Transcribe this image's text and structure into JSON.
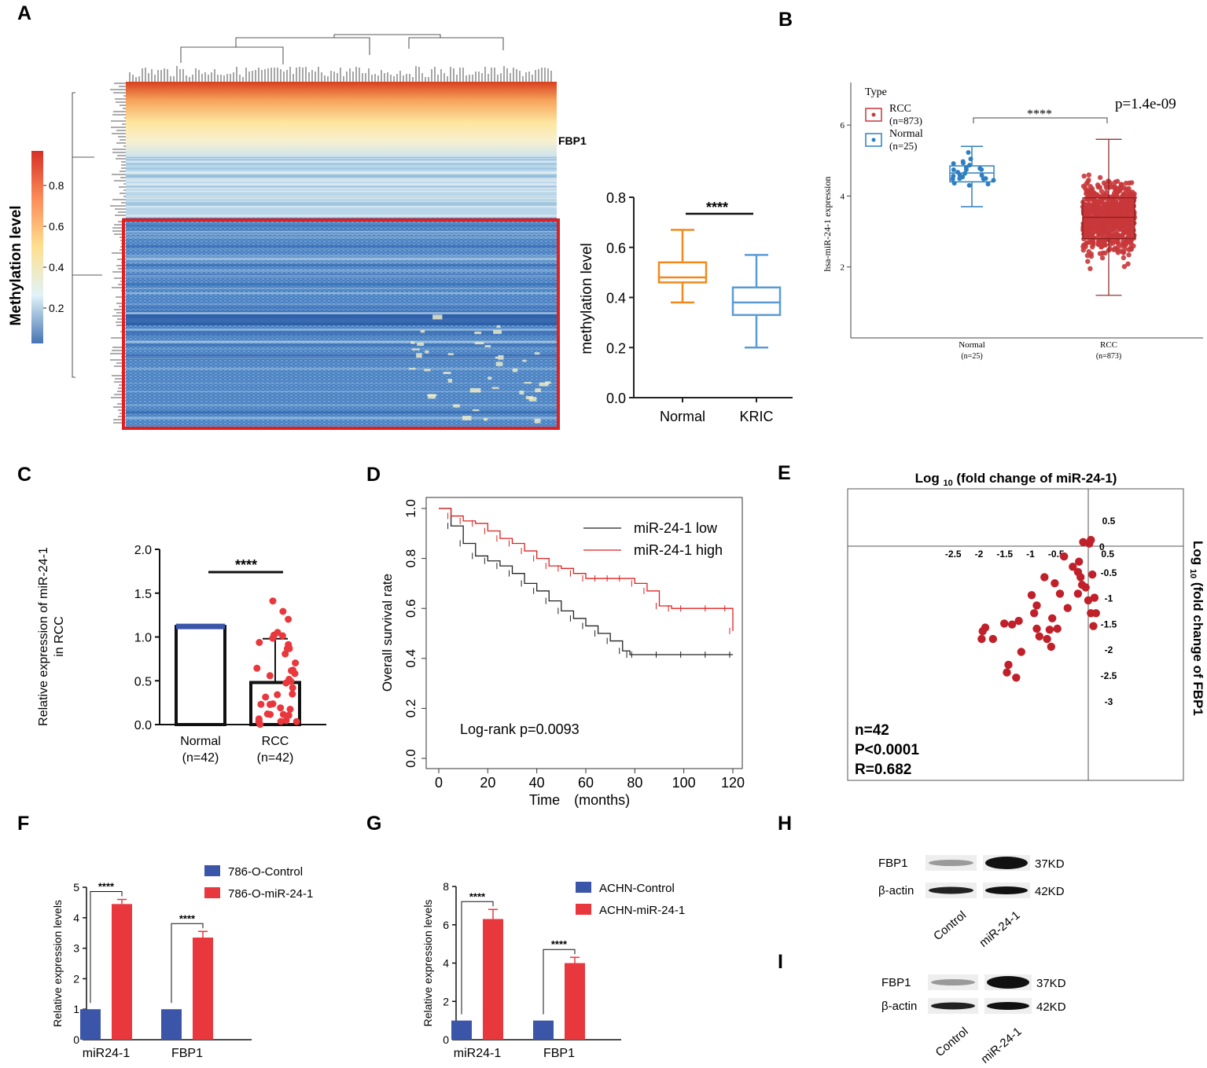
{
  "panel_letters": [
    "A",
    "B",
    "C",
    "D",
    "E",
    "F",
    "G",
    "H",
    "I"
  ],
  "colors": {
    "orange": "#f0891e",
    "lightblue": "#5b9bd5",
    "red": "#e8383d",
    "blue": "#3b55a8",
    "km_red": "#e02020",
    "km_black": "#222222",
    "dot": "#c0202a",
    "box_red": "#c8373a",
    "box_blue": "#2e7fc0"
  },
  "chart_data": [
    {
      "panel": "A",
      "type": "heatmap",
      "colorbar_label": "Methylation level",
      "colorbar_ticks": [
        "0.8",
        "0.6",
        "0.4",
        "0.2"
      ],
      "gene_label": "FBP1"
    },
    {
      "panel": "A-box",
      "type": "box",
      "ylabel": "methylation  level",
      "ylim": [
        0,
        0.8
      ],
      "yticks": [
        "0.0",
        "0.2",
        "0.4",
        "0.6",
        "0.8"
      ],
      "categories": [
        "Normal",
        "KRIC"
      ],
      "boxes": [
        {
          "name": "Normal",
          "min": 0.38,
          "q1": 0.46,
          "median": 0.48,
          "q3": 0.54,
          "max": 0.67
        },
        {
          "name": "KRIC",
          "min": 0.2,
          "q1": 0.33,
          "median": 0.38,
          "q3": 0.44,
          "max": 0.57
        }
      ],
      "significance": "****"
    },
    {
      "panel": "B",
      "type": "box",
      "ylabel": "hsa-miR-24-1 expression",
      "yticks": [
        "2",
        "4",
        "6"
      ],
      "legend_title": "Type",
      "legend": [
        {
          "name": "RCC",
          "n": "(n=873)"
        },
        {
          "name": "Normal",
          "n": "(n=25)"
        }
      ],
      "categories": [
        {
          "name": "Normal",
          "n": "(n=25)"
        },
        {
          "name": "RCC",
          "n": "(n=873)"
        }
      ],
      "boxes": [
        {
          "name": "Normal",
          "min": 3.7,
          "q1": 4.4,
          "median": 4.65,
          "q3": 4.85,
          "max": 5.4
        },
        {
          "name": "RCC",
          "min": 1.2,
          "q1": 2.8,
          "median": 3.4,
          "q3": 3.95,
          "max": 5.6
        }
      ],
      "pvalue": "p=1.4e-09",
      "significance": "****"
    },
    {
      "panel": "C",
      "type": "bar",
      "ylabel": "Relative expression of miR-24-1 in RCC",
      "ylim": [
        0,
        2.0
      ],
      "yticks": [
        "0.0",
        "0.5",
        "1.0",
        "1.5",
        "2.0"
      ],
      "categories": [
        {
          "name": "Normal",
          "n": "(n=42)"
        },
        {
          "name": "RCC",
          "n": "(n=42)"
        }
      ],
      "values": [
        1.12,
        0.48
      ],
      "error": [
        0,
        0.5
      ],
      "significance": "****"
    },
    {
      "panel": "D",
      "type": "line",
      "xlabel": "Time　(months)",
      "ylabel": "Overall survival rate",
      "xticks": [
        "0",
        "20",
        "40",
        "60",
        "80",
        "100",
        "120"
      ],
      "yticks": [
        "0.0",
        "0.2",
        "0.4",
        "0.6",
        "0.8",
        "1.0"
      ],
      "xlim": [
        0,
        120
      ],
      "ylim": [
        0,
        1.0
      ],
      "series": [
        {
          "name": "miR-24-1 low",
          "x": [
            0,
            5,
            10,
            15,
            20,
            25,
            30,
            35,
            40,
            45,
            50,
            55,
            60,
            65,
            70,
            75,
            78,
            80,
            90,
            100,
            110,
            120
          ],
          "y": [
            1.0,
            0.93,
            0.86,
            0.81,
            0.79,
            0.77,
            0.74,
            0.7,
            0.67,
            0.63,
            0.59,
            0.56,
            0.53,
            0.5,
            0.47,
            0.43,
            0.415,
            0.415,
            0.415,
            0.415,
            0.415,
            0.415
          ]
        },
        {
          "name": "miR-24-1 high",
          "x": [
            0,
            5,
            10,
            15,
            20,
            25,
            30,
            35,
            40,
            45,
            50,
            55,
            60,
            65,
            70,
            75,
            80,
            85,
            90,
            95,
            100,
            110,
            118,
            120
          ],
          "y": [
            1.0,
            0.97,
            0.95,
            0.94,
            0.91,
            0.88,
            0.86,
            0.83,
            0.8,
            0.77,
            0.76,
            0.74,
            0.72,
            0.72,
            0.72,
            0.72,
            0.7,
            0.67,
            0.61,
            0.6,
            0.6,
            0.6,
            0.6,
            0.51
          ]
        }
      ],
      "annotation": "Log-rank  p=0.0093"
    },
    {
      "panel": "E",
      "type": "scatter",
      "title_prefix": "Log",
      "title_sub": "10",
      "title_suffix": "(fold change of miR-24-1)",
      "ylabel_prefix": "Log",
      "ylabel_sub": "10",
      "ylabel_suffix": "(fold change of FBP1",
      "xticks": [
        "-2.5",
        "-2",
        "-1.5",
        "-1",
        "-0.5",
        "0",
        "0.5"
      ],
      "yticks": [
        "0.5",
        "0",
        "-0.5",
        "-1",
        "-1.5",
        "-2",
        "-2.5",
        "-3"
      ],
      "points": [
        [
          0.05,
          0.12
        ],
        [
          0.02,
          0.05
        ],
        [
          -0.1,
          0.08
        ],
        [
          -0.47,
          -0.2
        ],
        [
          -0.3,
          -0.4
        ],
        [
          -0.2,
          -0.5
        ],
        [
          -0.15,
          -0.6
        ],
        [
          -0.12,
          -0.75
        ],
        [
          -0.2,
          -0.92
        ],
        [
          -0.6,
          -1.6
        ],
        [
          -0.65,
          -0.72
        ],
        [
          -0.55,
          -0.92
        ],
        [
          -0.05,
          -0.8
        ],
        [
          -0.4,
          -1.2
        ],
        [
          -0.7,
          -1.4
        ],
        [
          -1.0,
          -1.6
        ],
        [
          -0.95,
          -1.75
        ],
        [
          -0.85,
          -0.6
        ],
        [
          -1.0,
          -1.15
        ],
        [
          -1.1,
          -0.95
        ],
        [
          -1.05,
          -1.3
        ],
        [
          -1.3,
          -2.05
        ],
        [
          -1.48,
          -1.52
        ],
        [
          -1.63,
          -1.5
        ],
        [
          -2.0,
          -1.58
        ],
        [
          -1.85,
          -1.8
        ],
        [
          -2.07,
          -1.8
        ],
        [
          -2.05,
          -1.65
        ],
        [
          -1.35,
          -1.45
        ],
        [
          -1.4,
          -2.55
        ],
        [
          -1.58,
          -2.45
        ],
        [
          -1.55,
          -2.3
        ],
        [
          -0.75,
          -1.62
        ],
        [
          -0.8,
          -1.8
        ],
        [
          -0.72,
          -1.95
        ],
        [
          0.05,
          -1.3
        ],
        [
          0.0,
          -1.05
        ],
        [
          0.12,
          -1.0
        ],
        [
          0.15,
          -1.3
        ],
        [
          0.1,
          -1.55
        ],
        [
          -0.18,
          -0.3
        ],
        [
          0.08,
          -0.55
        ]
      ],
      "stats": [
        "n=42",
        "P<0.0001",
        "R=0.682"
      ]
    },
    {
      "panel": "F",
      "type": "bar",
      "ylabel": "Relative expression levels",
      "ylim": [
        0,
        5
      ],
      "yticks": [
        "0",
        "1",
        "2",
        "3",
        "4",
        "5"
      ],
      "categories": [
        "miR24-1",
        "FBP1"
      ],
      "series": [
        {
          "name": "786-O-Control",
          "values": [
            1,
            1
          ]
        },
        {
          "name": "786-O-miR-24-1",
          "values": [
            4.45,
            3.35
          ],
          "error": [
            0.15,
            0.2
          ]
        }
      ],
      "significance": [
        "****",
        "****"
      ]
    },
    {
      "panel": "G",
      "type": "bar",
      "ylabel": "Relative expression levels",
      "ylim": [
        0,
        8
      ],
      "yticks": [
        "0",
        "2",
        "4",
        "6",
        "8"
      ],
      "categories": [
        "miR24-1",
        "FBP1"
      ],
      "series": [
        {
          "name": "ACHN-Control",
          "values": [
            1,
            1
          ]
        },
        {
          "name": "ACHN-miR-24-1",
          "values": [
            6.3,
            4.0
          ],
          "error": [
            0.5,
            0.3
          ]
        }
      ],
      "significance": [
        "****",
        "****"
      ]
    }
  ],
  "blots": [
    {
      "panel": "H",
      "rows": [
        {
          "protein": "FBP1",
          "size": "37KD"
        },
        {
          "protein": "β-actin",
          "size": "42KD"
        }
      ],
      "lanes": [
        "Control",
        "miR-24-1"
      ]
    },
    {
      "panel": "I",
      "rows": [
        {
          "protein": "FBP1",
          "size": "37KD"
        },
        {
          "protein": "β-actin",
          "size": "42KD"
        }
      ],
      "lanes": [
        "Control",
        "miR-24-1"
      ]
    }
  ]
}
